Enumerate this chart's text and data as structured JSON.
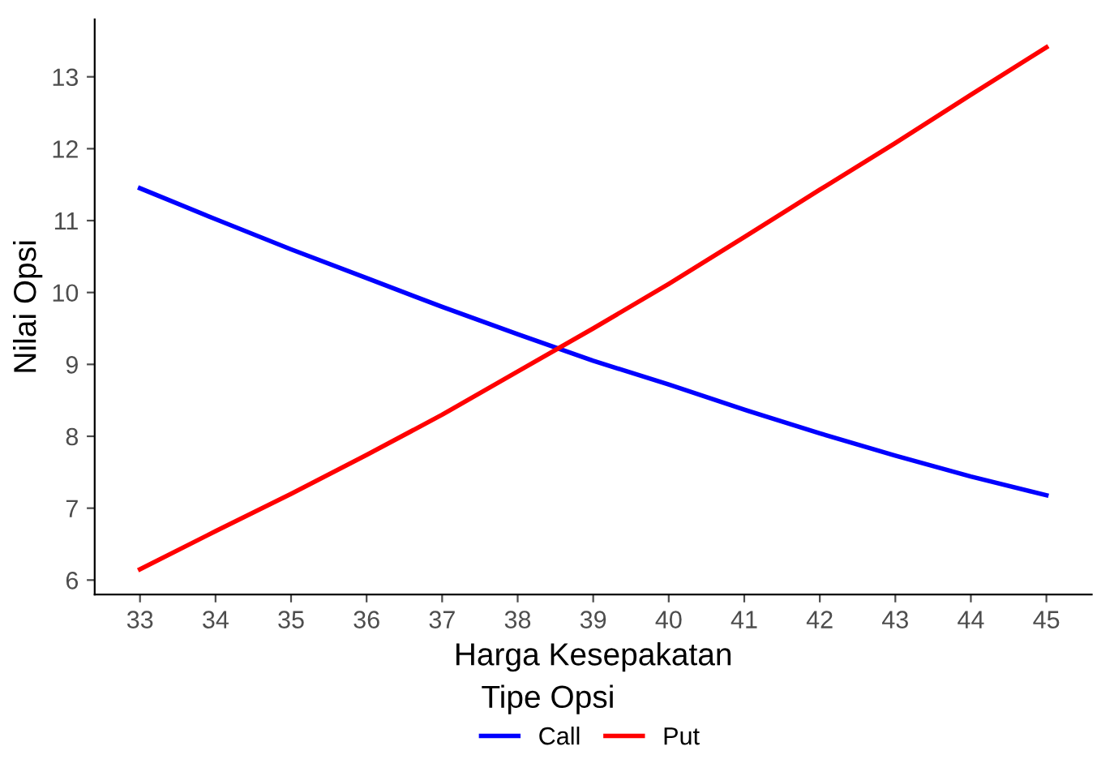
{
  "chart_data": {
    "type": "line",
    "xlabel": "Harga Kesepakatan",
    "ylabel": "Nilai Opsi",
    "legend_title": "Tipe Opsi",
    "legend": "bottom",
    "grid": false,
    "x": [
      33,
      34,
      35,
      36,
      37,
      38,
      39,
      40,
      41,
      42,
      43,
      44,
      45
    ],
    "series": [
      {
        "name": "Call",
        "color": "#0000ff",
        "values": [
          11.45,
          11.02,
          10.6,
          10.2,
          9.8,
          9.42,
          9.05,
          8.72,
          8.37,
          8.04,
          7.73,
          7.44,
          7.18
        ]
      },
      {
        "name": "Put",
        "color": "#ff0000",
        "values": [
          6.15,
          6.68,
          7.2,
          7.74,
          8.3,
          8.9,
          9.5,
          10.12,
          10.77,
          11.43,
          12.08,
          12.75,
          13.41
        ]
      }
    ],
    "xlim": [
      32.4,
      45.6
    ],
    "xticks": [
      33,
      34,
      35,
      36,
      37,
      38,
      39,
      40,
      41,
      42,
      43,
      44,
      45
    ],
    "ylim": [
      5.8,
      13.8
    ],
    "yticks": [
      6,
      7,
      8,
      9,
      10,
      11,
      12,
      13
    ]
  }
}
